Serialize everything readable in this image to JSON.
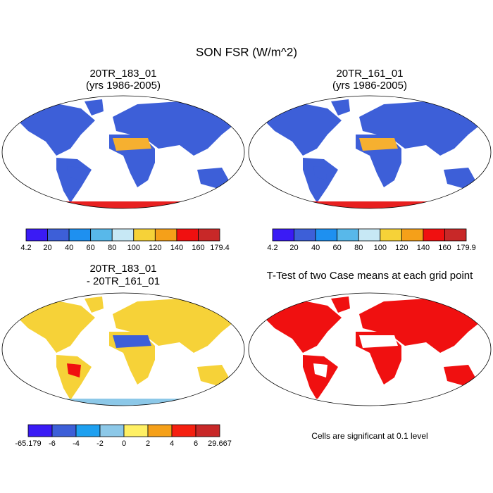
{
  "figure": {
    "title": "SON FSR (W/m^2)",
    "panels": [
      {
        "title": [
          "20TR_183_01",
          "(yrs 1986-2005)"
        ],
        "colorbar": {
          "colors": [
            "#3a1bf5",
            "#3d5fd8",
            "#1e90f0",
            "#58b8ea",
            "#c7e8f5",
            "#f6d238",
            "#f5a019",
            "#f01010",
            "#c82828"
          ],
          "labels": [
            "4.2",
            "20",
            "40",
            "60",
            "80",
            "100",
            "120",
            "140",
            "160",
            "179.4"
          ]
        }
      },
      {
        "title": [
          "20TR_161_01",
          "(yrs 1986-2005)"
        ],
        "colorbar": {
          "colors": [
            "#3a1bf5",
            "#3d5fd8",
            "#1e90f0",
            "#58b8ea",
            "#c7e8f5",
            "#f6d238",
            "#f5a019",
            "#f01010",
            "#c82828"
          ],
          "labels": [
            "4.2",
            "20",
            "40",
            "60",
            "80",
            "100",
            "120",
            "140",
            "160",
            "179.9"
          ]
        }
      },
      {
        "title": [
          "20TR_183_01",
          "- 20TR_161_01"
        ],
        "colorbar": {
          "colors": [
            "#3a1bf5",
            "#3d5fd8",
            "#1ea0f0",
            "#8cc8e8",
            "#fff064",
            "#f5a019",
            "#f52010",
            "#c82828"
          ],
          "labels": [
            "-65.179",
            "-6",
            "-4",
            "-2",
            "0",
            "2",
            "4",
            "6",
            "29.667"
          ]
        }
      },
      {
        "title": [
          "T-Test of two Case means at each grid point"
        ],
        "note": "Cells are significant at 0.1 level"
      }
    ]
  }
}
